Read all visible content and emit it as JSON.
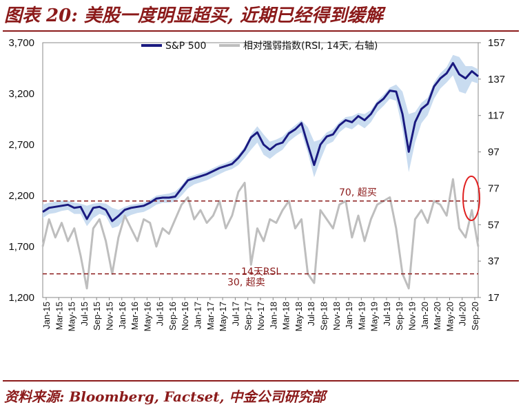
{
  "header": {
    "title": "图表 20: 美股一度明显超买, 近期已经得到缓解"
  },
  "footer": {
    "source": "资料来源: Bloomberg, Factset, 中金公司研究部"
  },
  "colors": {
    "spx": "#1A1A80",
    "rsi": "#BEBEBE",
    "band": "#C9DCF0",
    "threshold": "#8B1A1A",
    "highlight": "#E02020"
  },
  "chart_data": {
    "type": "line",
    "legend_placement": "top-center",
    "legend": [
      "S&P 500",
      "相对强弱指数(RSI, 14天, 右轴)"
    ],
    "y_left": {
      "ticks": [
        1200,
        1700,
        2200,
        2700,
        3200,
        3700
      ],
      "labels": [
        "1,200",
        "1,700",
        "2,200",
        "2,700",
        "3,200",
        "3,700"
      ],
      "range": [
        1200,
        3700
      ]
    },
    "y_right": {
      "ticks": [
        17,
        37,
        57,
        77,
        97,
        117,
        137,
        157
      ],
      "labels": [
        "17",
        "37",
        "57",
        "77",
        "97",
        "117",
        "137",
        "157"
      ],
      "range": [
        17,
        157
      ]
    },
    "x_labels": [
      "Jan-15",
      "Mar-15",
      "May-15",
      "Jul-15",
      "Sep-15",
      "Nov-15",
      "Jan-16",
      "Mar-16",
      "May-16",
      "Jul-16",
      "Sep-16",
      "Nov-16",
      "Jan-17",
      "Mar-17",
      "May-17",
      "Jul-17",
      "Sep-17",
      "Nov-17",
      "Jan-18",
      "Mar-18",
      "May-18",
      "Jul-18",
      "Sep-18",
      "Nov-18",
      "Jan-19",
      "Mar-19",
      "May-19",
      "Jul-19",
      "Sep-19",
      "Nov-19",
      "Jan-20",
      "Mar-20",
      "May-20",
      "Jul-20",
      "Sep-20"
    ],
    "x_range": [
      0,
      69
    ],
    "series": [
      {
        "name": "S&P 500",
        "axis": "left",
        "x": [
          0,
          1,
          2,
          3,
          4,
          5,
          6,
          7,
          8,
          9,
          10,
          11,
          12,
          13,
          14,
          15,
          16,
          17,
          18,
          19,
          20,
          21,
          22,
          23,
          24,
          25,
          26,
          27,
          28,
          29,
          30,
          31,
          32,
          33,
          34,
          35,
          36,
          37,
          38,
          39,
          40,
          41,
          42,
          43,
          44,
          45,
          46,
          47,
          48,
          49,
          50,
          51,
          52,
          53,
          54,
          55,
          56,
          57,
          58,
          59,
          60,
          61,
          62,
          63,
          64,
          65,
          66,
          67,
          68,
          69
        ],
        "values": [
          2040,
          2080,
          2090,
          2100,
          2110,
          2080,
          2090,
          1970,
          2080,
          2090,
          2060,
          1950,
          2000,
          2060,
          2080,
          2090,
          2100,
          2130,
          2170,
          2180,
          2180,
          2190,
          2270,
          2350,
          2370,
          2390,
          2410,
          2440,
          2470,
          2490,
          2510,
          2570,
          2650,
          2770,
          2820,
          2700,
          2650,
          2700,
          2720,
          2810,
          2850,
          2910,
          2700,
          2500,
          2700,
          2780,
          2800,
          2890,
          2940,
          2920,
          2980,
          2940,
          3000,
          3100,
          3150,
          3230,
          3220,
          3000,
          2630,
          2920,
          3050,
          3100,
          3270,
          3350,
          3400,
          3500,
          3390,
          3350,
          3420,
          3370
        ]
      },
      {
        "name": "相对强弱指数(RSI, 14天, 右轴)",
        "axis": "right",
        "x": [
          0,
          1,
          2,
          3,
          4,
          5,
          6,
          7,
          8,
          9,
          10,
          11,
          12,
          13,
          14,
          15,
          16,
          17,
          18,
          19,
          20,
          21,
          22,
          23,
          24,
          25,
          26,
          27,
          28,
          29,
          30,
          31,
          32,
          33,
          34,
          35,
          36,
          37,
          38,
          39,
          40,
          41,
          42,
          43,
          44,
          45,
          46,
          47,
          48,
          49,
          50,
          51,
          52,
          53,
          54,
          55,
          56,
          57,
          58,
          59,
          60,
          61,
          62,
          63,
          64,
          65,
          66,
          67,
          68,
          69
        ],
        "values": [
          45,
          60,
          50,
          58,
          48,
          55,
          40,
          22,
          55,
          60,
          48,
          30,
          50,
          62,
          55,
          48,
          60,
          58,
          45,
          55,
          52,
          60,
          68,
          72,
          60,
          65,
          58,
          62,
          70,
          55,
          62,
          75,
          80,
          35,
          55,
          48,
          60,
          58,
          65,
          70,
          55,
          60,
          30,
          25,
          65,
          60,
          55,
          68,
          70,
          50,
          62,
          48,
          60,
          68,
          70,
          72,
          55,
          30,
          22,
          60,
          65,
          58,
          70,
          68,
          62,
          82,
          55,
          50,
          65,
          45
        ]
      }
    ],
    "band_upper": [
      2110,
      2130,
      2140,
      2150,
      2150,
      2130,
      2120,
      2100,
      2120,
      2130,
      2120,
      2080,
      2060,
      2090,
      2110,
      2120,
      2130,
      2160,
      2200,
      2210,
      2220,
      2240,
      2300,
      2380,
      2400,
      2420,
      2440,
      2470,
      2500,
      2520,
      2550,
      2600,
      2680,
      2800,
      2880,
      2800,
      2730,
      2750,
      2780,
      2840,
      2890,
      2940,
      2870,
      2730,
      2750,
      2820,
      2850,
      2920,
      2970,
      2980,
      3010,
      3000,
      3040,
      3130,
      3190,
      3260,
      3290,
      3220,
      3000,
      3020,
      3110,
      3160,
      3310,
      3400,
      3460,
      3580,
      3560,
      3470,
      3470,
      3440
    ],
    "band_lower": [
      1980,
      2020,
      2030,
      2050,
      2060,
      2020,
      2020,
      1900,
      1980,
      2020,
      2000,
      1880,
      1900,
      1980,
      2010,
      2030,
      2040,
      2070,
      2110,
      2130,
      2130,
      2140,
      2200,
      2270,
      2310,
      2330,
      2350,
      2380,
      2410,
      2440,
      2460,
      2500,
      2570,
      2650,
      2720,
      2600,
      2560,
      2610,
      2650,
      2730,
      2780,
      2820,
      2620,
      2380,
      2550,
      2700,
      2730,
      2820,
      2870,
      2850,
      2900,
      2860,
      2920,
      3020,
      3080,
      3150,
      3130,
      2850,
      2430,
      2720,
      2910,
      2990,
      3150,
      3250,
      3310,
      3380,
      3220,
      3200,
      3320,
      3300
    ],
    "thresholds": [
      {
        "value": 70,
        "label": "70, 超买"
      },
      {
        "value": 30,
        "label": "30, 超卖"
      }
    ],
    "annotation_rsi": "14天RSI"
  }
}
